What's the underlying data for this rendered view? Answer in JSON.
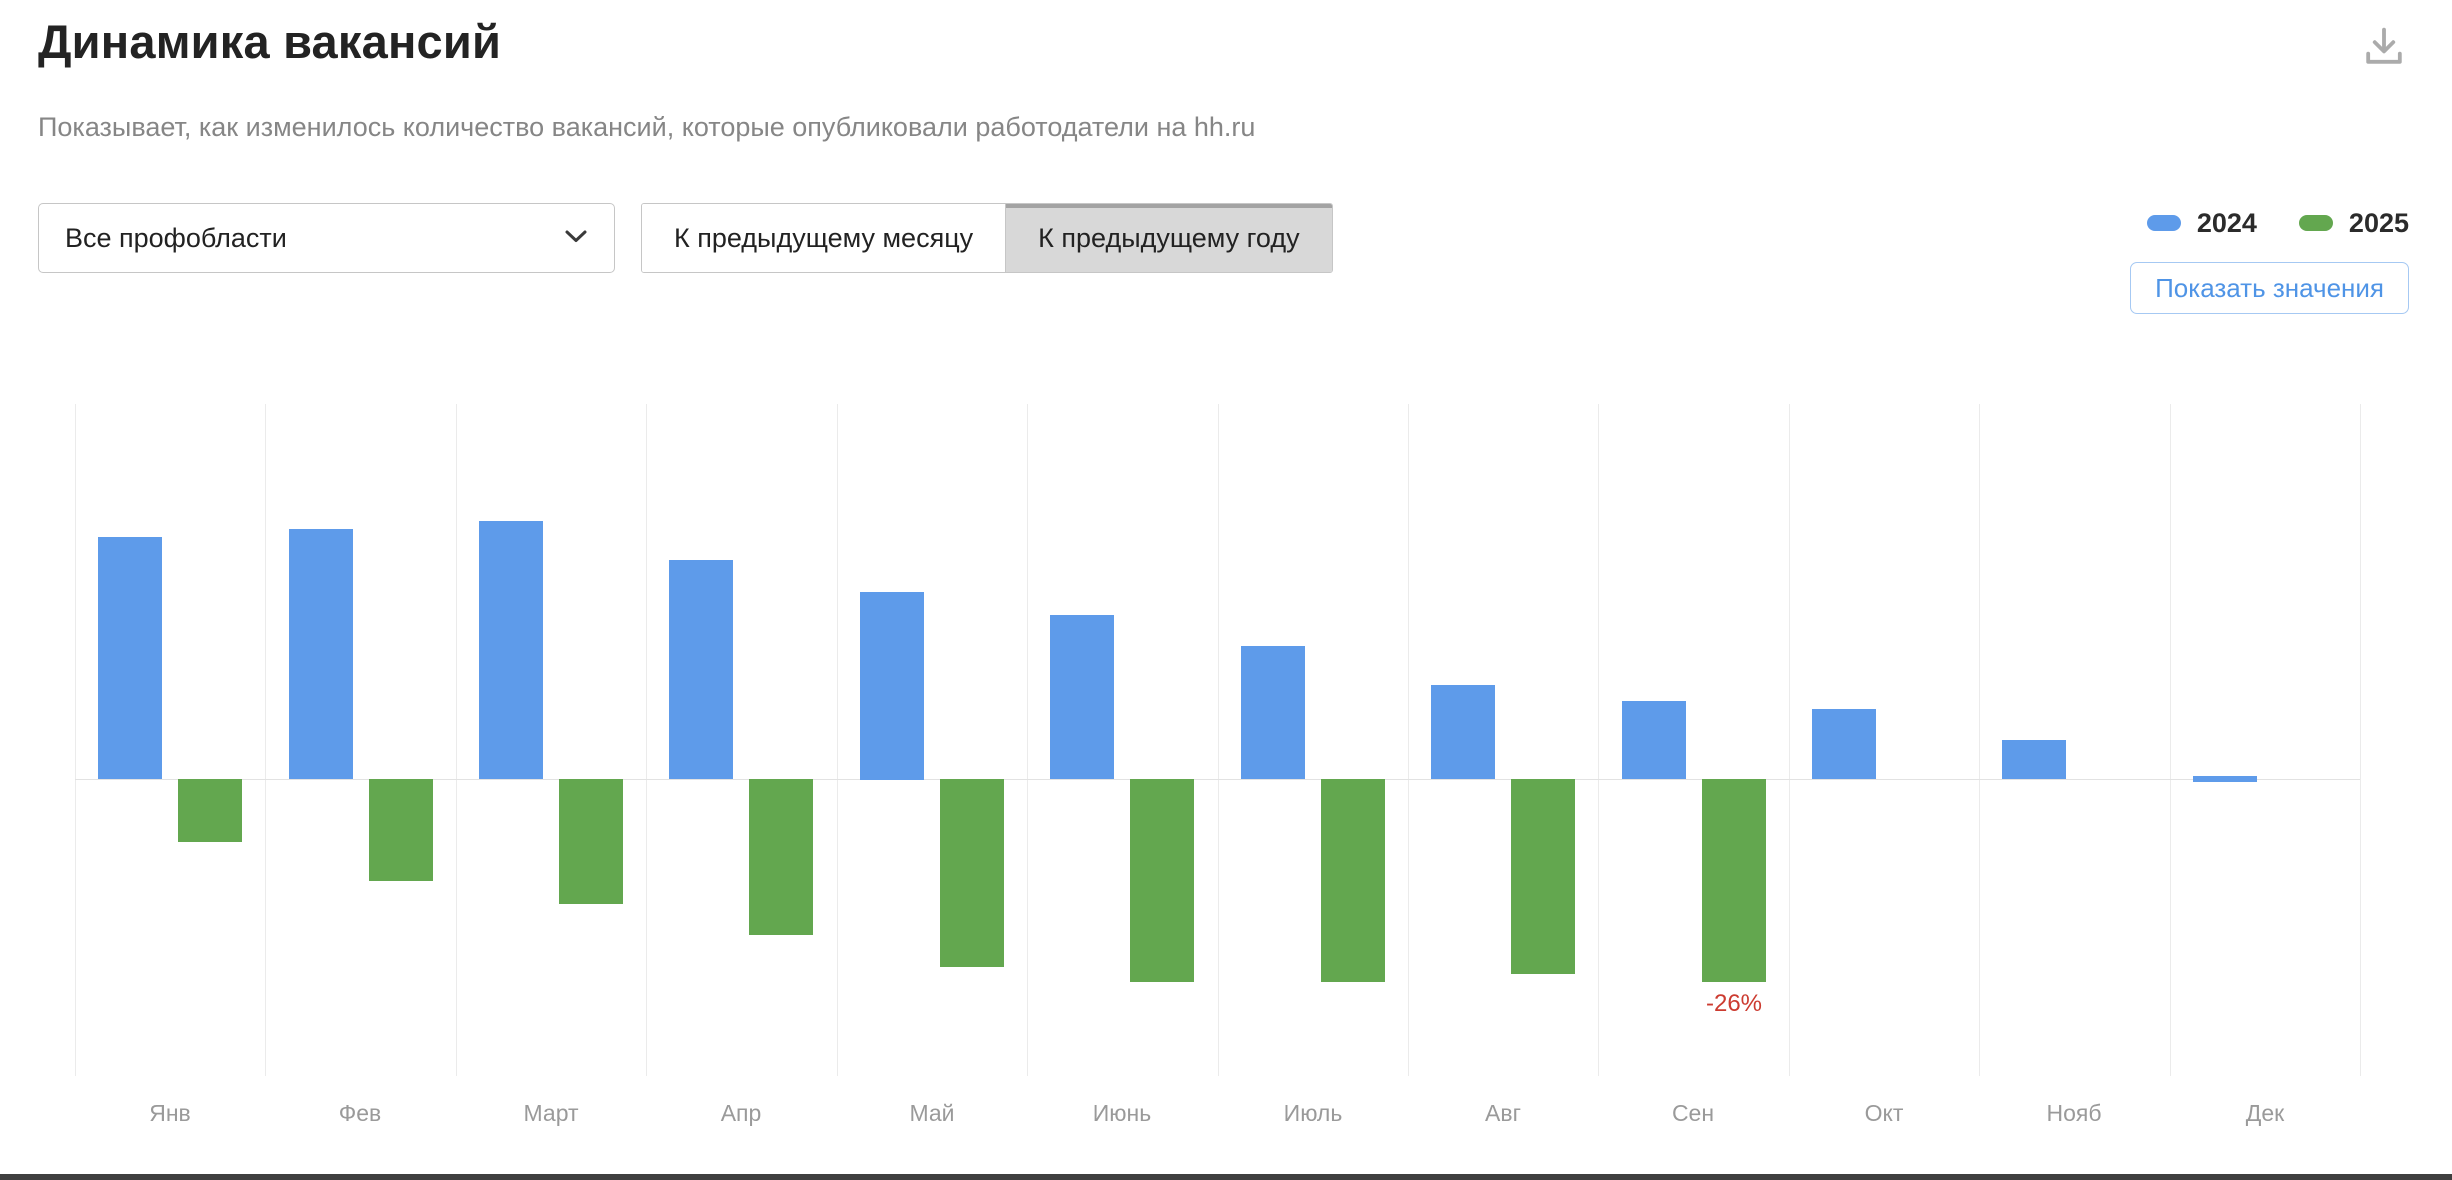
{
  "header": {
    "title": "Динамика вакансий",
    "subtitle": "Показывает, как изменилось количество вакансий, которые опубликовали работодатели на hh.ru"
  },
  "controls": {
    "profarea_select": {
      "value": "Все профобласти"
    },
    "mode_toggle": {
      "options": [
        "К предыдущему месяцу",
        "К предыдущему году"
      ],
      "active_index": 1
    },
    "show_values_button": "Показать значения"
  },
  "legend": [
    {
      "label": "2024",
      "color": "#5e9bea"
    },
    {
      "label": "2025",
      "color": "#63a74f"
    }
  ],
  "chart_data": {
    "type": "bar",
    "title": "Динамика вакансий — к предыдущему году",
    "unit": "%",
    "categories": [
      "Янв",
      "Фев",
      "Март",
      "Апр",
      "Май",
      "Июнь",
      "Июль",
      "Авг",
      "Сен",
      "Окт",
      "Нояб",
      "Дек"
    ],
    "series": [
      {
        "name": "2024",
        "color": "#5e9bea",
        "values": [
          31,
          32,
          33,
          28,
          24,
          21,
          17,
          12,
          10,
          9,
          5,
          0
        ]
      },
      {
        "name": "2025",
        "color": "#63a74f",
        "values": [
          -8,
          -13,
          -16,
          -20,
          -24,
          -26,
          -26,
          -25,
          -26,
          null,
          null,
          null
        ]
      }
    ],
    "annotations": [
      {
        "category": "Сен",
        "series": "2025",
        "text": "-26%",
        "color": "#cc3b30"
      }
    ],
    "ylim": [
      -38,
      48
    ],
    "grid": "vertical",
    "legend_position": "top-right"
  }
}
